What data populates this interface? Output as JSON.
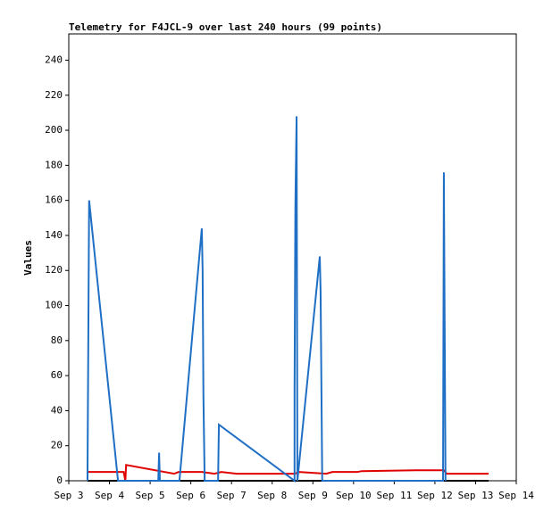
{
  "chart_data": {
    "type": "line",
    "title": "Telemetry for F4JCL-9 over last 240 hours (99 points)",
    "ylabel": "Values",
    "xlim": [
      3,
      14
    ],
    "ylim": [
      0,
      255
    ],
    "xticks": [
      {
        "value": 3,
        "label": "Sep 3"
      },
      {
        "value": 4,
        "label": "Sep 4"
      },
      {
        "value": 5,
        "label": "Sep 5"
      },
      {
        "value": 6,
        "label": "Sep 6"
      },
      {
        "value": 7,
        "label": "Sep 7"
      },
      {
        "value": 8,
        "label": "Sep 8"
      },
      {
        "value": 9,
        "label": "Sep 9"
      },
      {
        "value": 10,
        "label": "Sep 10"
      },
      {
        "value": 11,
        "label": "Sep 11"
      },
      {
        "value": 12,
        "label": "Sep 12"
      },
      {
        "value": 13,
        "label": "Sep 13"
      },
      {
        "value": 14,
        "label": "Sep 14"
      }
    ],
    "yticks": [
      0,
      20,
      40,
      60,
      80,
      100,
      120,
      140,
      160,
      180,
      200,
      220,
      240
    ],
    "series": [
      {
        "color": "#000000",
        "x": [
          3.46,
          13.32
        ],
        "values": [
          0,
          0
        ]
      },
      {
        "color": "#e00000",
        "x": [
          3.48,
          4.21,
          4.35,
          4.39,
          4.41,
          5.59,
          5.7,
          6.27,
          6.58,
          6.75,
          7.13,
          8.55,
          8.66,
          9.33,
          9.48,
          10.09,
          10.2,
          11.52,
          12.22,
          12.29,
          13.32
        ],
        "values": [
          5,
          5,
          5,
          0,
          9,
          4,
          5,
          5,
          4,
          5,
          4,
          4,
          5,
          4,
          5,
          5,
          5.5,
          6,
          6,
          4,
          4
        ]
      },
      {
        "color": "#1f6fc5",
        "x": [
          3.46,
          3.48,
          3.5,
          4.21,
          5.2,
          5.22,
          5.24,
          5.72,
          6.27,
          6.29,
          6.31,
          6.34,
          6.67,
          6.69,
          8.55,
          8.55,
          8.57,
          8.6,
          8.62,
          9.17,
          9.19,
          9.23,
          12.2,
          12.22,
          12.24,
          12.26
        ],
        "values": [
          0,
          80,
          160,
          0,
          0,
          16,
          0,
          0,
          144,
          120,
          48,
          0,
          0,
          32,
          0,
          52,
          156,
          208,
          0,
          128,
          108,
          0,
          0,
          176,
          88,
          0
        ]
      }
    ]
  }
}
